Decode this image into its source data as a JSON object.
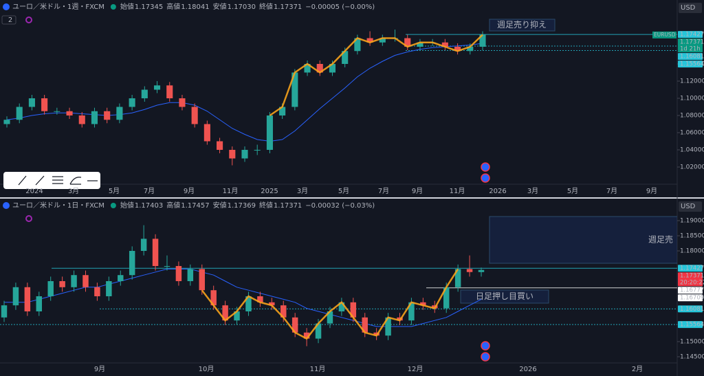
{
  "panels": [
    {
      "title": "ユーロ／米ドル・1週・FXCM",
      "legend_count": "2",
      "currency": "USD",
      "value_color": "#26a69a",
      "ohlc": [
        {
          "label": "始値",
          "value": "1.17345"
        },
        {
          "label": "高値",
          "value": "1.18041"
        },
        {
          "label": "安値",
          "value": "1.17030"
        },
        {
          "label": "終値",
          "value": "1.17371"
        }
      ],
      "change": "−0.00005 (−0.00%)",
      "price_ticks": [
        {
          "value": 1.14,
          "label": "1.14000"
        },
        {
          "value": 1.12,
          "label": "1.12000"
        },
        {
          "value": 1.1,
          "label": "1.10000"
        },
        {
          "value": 1.08,
          "label": "1.08000"
        },
        {
          "value": 1.06,
          "label": "1.06000"
        },
        {
          "value": 1.04,
          "label": "1.04000"
        },
        {
          "value": 1.02,
          "label": "1.02000"
        }
      ],
      "time_labels": [
        "2024",
        "3月",
        "5月",
        "7月",
        "9月",
        "11月",
        "2025",
        "3月",
        "5月",
        "7月",
        "9月",
        "11月",
        "2026",
        "3月",
        "5月",
        "7月",
        "9月"
      ],
      "candles": [
        [
          1.07,
          1.079,
          1.066,
          1.075
        ],
        [
          1.075,
          1.094,
          1.071,
          1.09
        ],
        [
          1.09,
          1.104,
          1.086,
          1.1
        ],
        [
          1.1,
          1.104,
          1.081,
          1.085
        ],
        [
          1.085,
          1.089,
          1.081,
          1.085
        ],
        [
          1.085,
          1.089,
          1.076,
          1.08
        ],
        [
          1.08,
          1.084,
          1.066,
          1.07
        ],
        [
          1.07,
          1.089,
          1.066,
          1.085
        ],
        [
          1.085,
          1.089,
          1.071,
          1.075
        ],
        [
          1.075,
          1.094,
          1.071,
          1.09
        ],
        [
          1.09,
          1.104,
          1.086,
          1.1
        ],
        [
          1.1,
          1.114,
          1.096,
          1.11
        ],
        [
          1.11,
          1.12,
          1.106,
          1.115
        ],
        [
          1.115,
          1.119,
          1.096,
          1.1
        ],
        [
          1.1,
          1.104,
          1.086,
          1.09
        ],
        [
          1.09,
          1.094,
          1.066,
          1.07
        ],
        [
          1.07,
          1.074,
          1.046,
          1.05
        ],
        [
          1.05,
          1.054,
          1.036,
          1.04
        ],
        [
          1.04,
          1.044,
          1.022,
          1.03
        ],
        [
          1.03,
          1.044,
          1.026,
          1.04
        ],
        [
          1.04,
          1.046,
          1.034,
          1.04
        ],
        [
          1.04,
          1.084,
          1.036,
          1.08
        ],
        [
          1.08,
          1.094,
          1.076,
          1.09
        ],
        [
          1.09,
          1.134,
          1.086,
          1.13
        ],
        [
          1.13,
          1.144,
          1.126,
          1.14
        ],
        [
          1.14,
          1.144,
          1.126,
          1.13
        ],
        [
          1.13,
          1.144,
          1.126,
          1.14
        ],
        [
          1.14,
          1.159,
          1.136,
          1.155
        ],
        [
          1.155,
          1.174,
          1.151,
          1.17
        ],
        [
          1.17,
          1.178,
          1.161,
          1.165
        ],
        [
          1.165,
          1.174,
          1.161,
          1.17
        ],
        [
          1.17,
          1.18,
          1.166,
          1.17
        ],
        [
          1.17,
          1.174,
          1.156,
          1.16
        ],
        [
          1.16,
          1.169,
          1.156,
          1.165
        ],
        [
          1.165,
          1.169,
          1.161,
          1.165
        ],
        [
          1.165,
          1.169,
          1.156,
          1.16
        ],
        [
          1.16,
          1.164,
          1.151,
          1.155
        ],
        [
          1.155,
          1.164,
          1.151,
          1.16
        ],
        [
          1.16,
          1.178,
          1.156,
          1.174
        ]
      ],
      "ma": [
        1.075,
        1.077,
        1.08,
        1.082,
        1.083,
        1.083,
        1.082,
        1.081,
        1.08,
        1.081,
        1.083,
        1.087,
        1.092,
        1.095,
        1.095,
        1.092,
        1.085,
        1.075,
        1.065,
        1.058,
        1.052,
        1.05,
        1.052,
        1.062,
        1.075,
        1.088,
        1.1,
        1.112,
        1.125,
        1.135,
        1.143,
        1.15,
        1.154,
        1.157,
        1.159,
        1.16,
        1.161,
        1.162,
        1.164
      ],
      "levels": [
        {
          "value": 1.17427,
          "color": "#26c6da",
          "dashed": false
        },
        {
          "value": 1.16081,
          "color": "#26c6da",
          "dashed": true
        },
        {
          "value": 1.15564,
          "color": "#26c6da",
          "dashed": true
        }
      ],
      "last": {
        "value": 1.17371,
        "timer": "1d 21h",
        "color": "#089981"
      },
      "symbol_tag": "EURUSD",
      "annotations": [
        "週足売り抑え"
      ]
    },
    {
      "title": "ユーロ／米ドル・1日・FXCM",
      "currency": "USD",
      "value_color": "#f23645",
      "ohlc": [
        {
          "label": "始値",
          "value": "1.17403"
        },
        {
          "label": "高値",
          "value": "1.17457"
        },
        {
          "label": "安値",
          "value": "1.17369"
        },
        {
          "label": "終値",
          "value": "1.17371"
        }
      ],
      "change": "−0.00032 (−0.03%)",
      "price_ticks": [
        {
          "value": 1.19,
          "label": "1.19000"
        },
        {
          "value": 1.185,
          "label": "1.18500"
        },
        {
          "value": 1.18,
          "label": "1.18000"
        },
        {
          "value": 1.15,
          "label": "1.15000"
        },
        {
          "value": 1.145,
          "label": "1.14500"
        }
      ],
      "time_labels": [
        "9月",
        "10月",
        "11月",
        "12月",
        "2026",
        "2月"
      ],
      "candles": [
        [
          1.158,
          1.1635,
          1.1565,
          1.162
        ],
        [
          1.162,
          1.1695,
          1.1605,
          1.168
        ],
        [
          1.168,
          1.1695,
          1.1585,
          1.16
        ],
        [
          1.16,
          1.1665,
          1.1585,
          1.165
        ],
        [
          1.165,
          1.1715,
          1.1635,
          1.17
        ],
        [
          1.17,
          1.1715,
          1.1665,
          1.168
        ],
        [
          1.168,
          1.1735,
          1.1665,
          1.172
        ],
        [
          1.172,
          1.1735,
          1.1665,
          1.168
        ],
        [
          1.168,
          1.1695,
          1.1635,
          1.165
        ],
        [
          1.165,
          1.1715,
          1.1635,
          1.17
        ],
        [
          1.17,
          1.1735,
          1.1685,
          1.172
        ],
        [
          1.172,
          1.1815,
          1.1705,
          1.18
        ],
        [
          1.18,
          1.1885,
          1.1785,
          1.184
        ],
        [
          1.184,
          1.1855,
          1.1735,
          1.175
        ],
        [
          1.175,
          1.1785,
          1.1735,
          1.175
        ],
        [
          1.175,
          1.1765,
          1.1685,
          1.17
        ],
        [
          1.17,
          1.1755,
          1.1685,
          1.174
        ],
        [
          1.174,
          1.1755,
          1.1655,
          1.167
        ],
        [
          1.167,
          1.1685,
          1.1605,
          1.162
        ],
        [
          1.162,
          1.1635,
          1.1555,
          1.157
        ],
        [
          1.157,
          1.1615,
          1.1555,
          1.16
        ],
        [
          1.16,
          1.1665,
          1.1585,
          1.165
        ],
        [
          1.165,
          1.1665,
          1.1615,
          1.163
        ],
        [
          1.163,
          1.1645,
          1.1605,
          1.162
        ],
        [
          1.162,
          1.1635,
          1.1565,
          1.158
        ],
        [
          1.158,
          1.1595,
          1.1515,
          1.153
        ],
        [
          1.153,
          1.1545,
          1.1485,
          1.151
        ],
        [
          1.151,
          1.1575,
          1.1495,
          1.156
        ],
        [
          1.156,
          1.1615,
          1.1545,
          1.16
        ],
        [
          1.16,
          1.1645,
          1.1585,
          1.163
        ],
        [
          1.163,
          1.1645,
          1.1565,
          1.158
        ],
        [
          1.158,
          1.1595,
          1.1515,
          1.153
        ],
        [
          1.153,
          1.1545,
          1.1505,
          1.152
        ],
        [
          1.152,
          1.1595,
          1.1505,
          1.158
        ],
        [
          1.158,
          1.1595,
          1.1555,
          1.157
        ],
        [
          1.157,
          1.1645,
          1.1555,
          1.163
        ],
        [
          1.163,
          1.1645,
          1.1605,
          1.162
        ],
        [
          1.162,
          1.1635,
          1.1595,
          1.161
        ],
        [
          1.161,
          1.1695,
          1.1595,
          1.168
        ],
        [
          1.168,
          1.1755,
          1.1665,
          1.174
        ],
        [
          1.174,
          1.1785,
          1.1715,
          1.173
        ],
        [
          1.173,
          1.1745,
          1.1715,
          1.1737
        ]
      ],
      "ma": [
        1.163,
        1.163,
        1.163,
        1.164,
        1.165,
        1.166,
        1.167,
        1.168,
        1.168,
        1.169,
        1.17,
        1.171,
        1.172,
        1.173,
        1.174,
        1.174,
        1.174,
        1.173,
        1.172,
        1.17,
        1.168,
        1.167,
        1.166,
        1.165,
        1.164,
        1.163,
        1.161,
        1.16,
        1.159,
        1.158,
        1.157,
        1.156,
        1.155,
        1.155,
        1.155,
        1.155,
        1.156,
        1.157,
        1.158,
        1.16,
        1.162,
        1.164
      ],
      "levels": [
        {
          "value": 1.17427,
          "color": "#26c6da",
          "dashed": false
        },
        {
          "value": 1.16777,
          "color": "#ffffff",
          "dashed": false
        },
        {
          "value": 1.16709,
          "color": "#ffffff",
          "dashed": false
        },
        {
          "value": 1.16081,
          "color": "#26c6da",
          "dashed": true
        },
        {
          "value": 1.15564,
          "color": "#26c6da",
          "dashed": true
        }
      ],
      "last": {
        "value": 1.17371,
        "timer": "20:20:22",
        "color": "#f23645"
      },
      "annotations": [
        "週足売",
        "日足押し目買い"
      ]
    }
  ]
}
